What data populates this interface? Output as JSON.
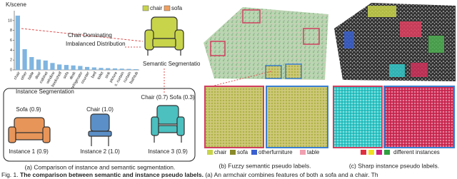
{
  "panel_a": {
    "chart": {
      "type": "bar",
      "y_label": "K/scene",
      "categories": [
        "chair",
        "other",
        "table",
        "door",
        "cabinet",
        "window",
        "bookshelf",
        "sofa",
        "desk",
        "refrigerator",
        "counter",
        "bed",
        "toilet",
        "sink",
        "picture",
        "s. curtain",
        "curtain",
        "bathtub"
      ],
      "values": [
        11,
        4.2,
        2.6,
        2.1,
        1.9,
        1.4,
        1.1,
        1.0,
        0.9,
        0.8,
        0.6,
        0.5,
        0.4,
        0.35,
        0.3,
        0.25,
        0.2,
        0.15
      ],
      "ylim": [
        0,
        12
      ],
      "yticks": [
        0,
        2,
        4,
        6,
        8,
        10
      ],
      "color": "#7fb5e0"
    },
    "annotations": {
      "dominating": "Chair Dominating",
      "imbalanced": "Imbalanced Distribution"
    },
    "semantic": {
      "title": "Semantic Segmentation",
      "legend": [
        "chair",
        "sofa"
      ]
    },
    "instance": {
      "title": "Instance Segmentation",
      "items": [
        {
          "score_label": "Sofa (0.9)",
          "name": "Instance 1 (0.9)"
        },
        {
          "score_label": "Chair (1.0)",
          "name": "Instance 2 (1.0)"
        },
        {
          "score_label": "Chair (0.7) Sofa (0.3)",
          "name": "Instance 3 (0.9)"
        }
      ]
    },
    "caption": "(a) Comparison of instance and semantic segmentation."
  },
  "panel_b": {
    "legend": [
      "chair",
      "sofa",
      "otherfurniture",
      "table"
    ],
    "caption": "(b) Fuzzy semantic pseudo labels."
  },
  "panel_c": {
    "legend_label": "different instances",
    "caption": "(c) Sharp instance pseudo labels."
  },
  "figure_caption": {
    "label": "Fig. 1.",
    "title": "The comparison between semantic and instance pseudo labels.",
    "text": "(a) An armchair combines features of both a sofa and a chair. Th"
  }
}
